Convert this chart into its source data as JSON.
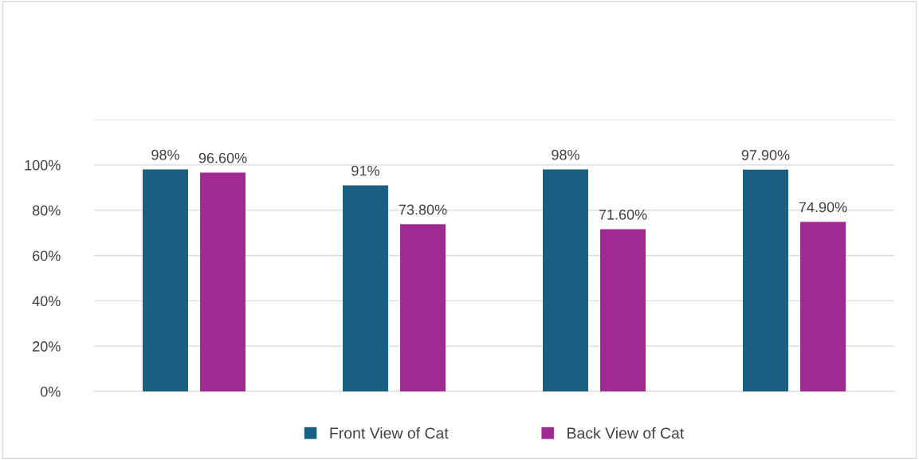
{
  "chart_data": {
    "type": "bar",
    "categories": [
      null,
      null,
      null,
      null
    ],
    "series": [
      {
        "name": "Front View of Cat",
        "color": "#185f82",
        "values": [
          98,
          91,
          98,
          97.9
        ],
        "value_labels": [
          "98%",
          "91%",
          "98%",
          "97.90%"
        ]
      },
      {
        "name": "Back View of Cat",
        "color": "#9e2a92",
        "values": [
          96.6,
          73.8,
          71.6,
          74.9
        ],
        "value_labels": [
          "96.60%",
          "73.80%",
          "71.60%",
          "74.90%"
        ]
      }
    ],
    "ylim": [
      0,
      120
    ],
    "yticks": [
      {
        "value": 0,
        "label": "0%"
      },
      {
        "value": 20,
        "label": "20%"
      },
      {
        "value": 40,
        "label": "40%"
      },
      {
        "value": 60,
        "label": "60%"
      },
      {
        "value": 80,
        "label": "80%"
      },
      {
        "value": 100,
        "label": "100%"
      },
      {
        "value": 120,
        "label": null
      }
    ],
    "grid": "y",
    "legend": "bottom"
  }
}
